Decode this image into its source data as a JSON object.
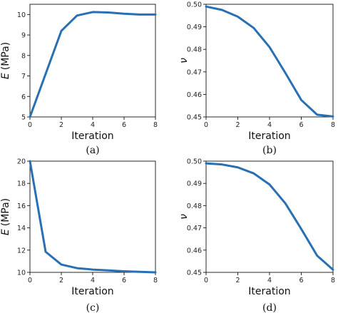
{
  "chart_data": [
    {
      "type": "line",
      "caption": "(a)",
      "xlabel": "Iteration",
      "ylabel": {
        "symbol": "E",
        "unit": "(MPa)"
      },
      "x": [
        0,
        1,
        2,
        3,
        4,
        5,
        6,
        7,
        8
      ],
      "values": [
        5.0,
        7.1,
        9.2,
        9.95,
        10.12,
        10.1,
        10.04,
        10.0,
        10.0
      ],
      "xlim": [
        0,
        8
      ],
      "ylim": [
        5,
        10.5
      ],
      "xticks": [
        "0",
        "2",
        "4",
        "6",
        "8"
      ],
      "yticks": [
        "5",
        "6",
        "7",
        "8",
        "9",
        "10"
      ],
      "color": "#2870b3",
      "grid": false
    },
    {
      "type": "line",
      "caption": "(b)",
      "xlabel": "Iteration",
      "ylabel": {
        "symbol": "ν",
        "unit": ""
      },
      "x": [
        0,
        1,
        2,
        3,
        4,
        5,
        6,
        7,
        8
      ],
      "values": [
        0.499,
        0.4975,
        0.4945,
        0.4895,
        0.481,
        0.4695,
        0.4575,
        0.451,
        0.4502
      ],
      "xlim": [
        0,
        8
      ],
      "ylim": [
        0.45,
        0.5
      ],
      "xticks": [
        "0",
        "2",
        "4",
        "6",
        "8"
      ],
      "yticks": [
        "0.45",
        "0.46",
        "0.47",
        "0.48",
        "0.49",
        "0.50"
      ],
      "color": "#2870b3",
      "grid": false
    },
    {
      "type": "line",
      "caption": "(c)",
      "xlabel": "Iteration",
      "ylabel": {
        "symbol": "E",
        "unit": "(MPa)"
      },
      "x": [
        0,
        1,
        2,
        3,
        4,
        5,
        6,
        7,
        8
      ],
      "values": [
        20.0,
        11.85,
        10.7,
        10.38,
        10.25,
        10.18,
        10.1,
        10.05,
        10.0
      ],
      "xlim": [
        0,
        8
      ],
      "ylim": [
        10,
        20
      ],
      "xticks": [
        "0",
        "2",
        "4",
        "6",
        "8"
      ],
      "yticks": [
        "10",
        "12",
        "14",
        "16",
        "18",
        "20"
      ],
      "color": "#2870b3",
      "grid": false
    },
    {
      "type": "line",
      "caption": "(d)",
      "xlabel": "Iteration",
      "ylabel": {
        "symbol": "ν",
        "unit": ""
      },
      "x": [
        0,
        1,
        2,
        3,
        4,
        5,
        6,
        7,
        8
      ],
      "values": [
        0.499,
        0.4985,
        0.4972,
        0.4945,
        0.4895,
        0.481,
        0.4695,
        0.4575,
        0.4512
      ],
      "xlim": [
        0,
        8
      ],
      "ylim": [
        0.45,
        0.5
      ],
      "xticks": [
        "0",
        "2",
        "4",
        "6",
        "8"
      ],
      "yticks": [
        "0.45",
        "0.46",
        "0.47",
        "0.48",
        "0.49",
        "0.50"
      ],
      "color": "#2870b3",
      "grid": false
    }
  ]
}
